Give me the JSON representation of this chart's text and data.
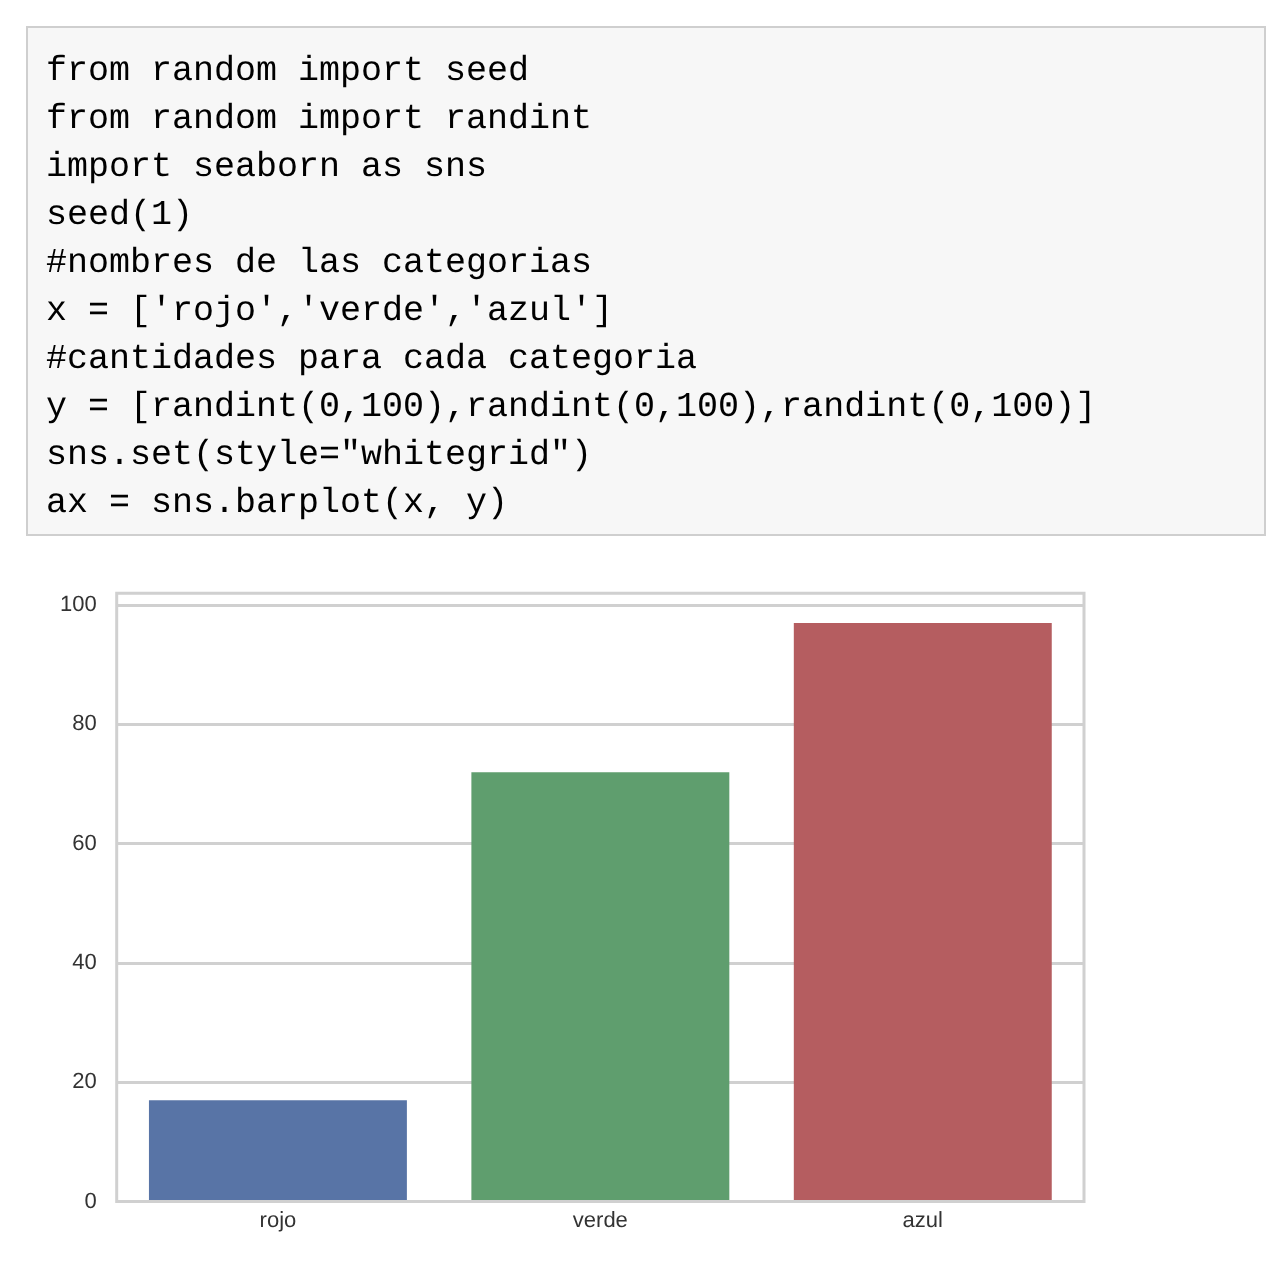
{
  "chart_data": {
    "type": "bar",
    "annotations": [
      "from random import seed",
      "from random import randint",
      "import seaborn as sns",
      "seed(1)",
      "#nombres de las categorias",
      "x = ['rojo','verde','azul']",
      "#cantidades para cada categoria",
      "y = [randint(0,100),randint(0,100),randint(0,100)]",
      "sns.set(style=\"whitegrid\")",
      "ax = sns.barplot(x, y)"
    ],
    "categories": [
      "rojo",
      "verde",
      "azul"
    ],
    "values": [
      17,
      72,
      97
    ],
    "colors": [
      "#5874a6",
      "#5f9e6e",
      "#b55d60"
    ],
    "ylim": [
      0,
      102
    ],
    "yticks": [
      0,
      20,
      40,
      60,
      80,
      100
    ],
    "grid": "y",
    "legend": false
  }
}
